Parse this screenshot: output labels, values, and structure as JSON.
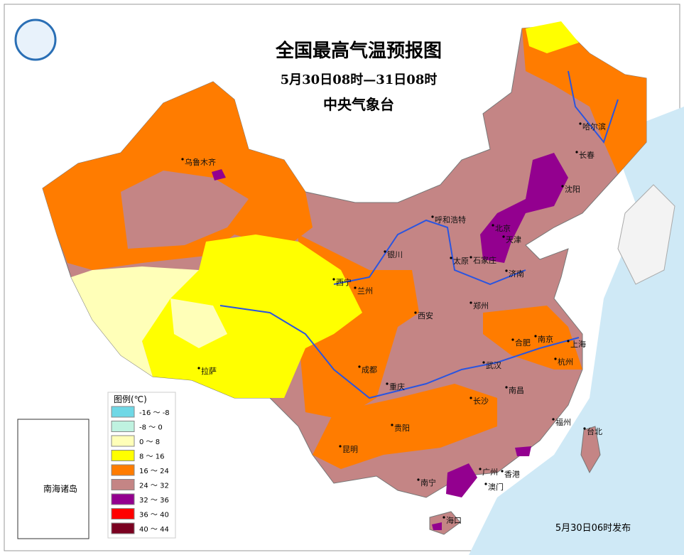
{
  "header": {
    "title": "全国最高气温预报图",
    "subtitle": "5月30日08时—31日08时",
    "issuer": "中央气象台"
  },
  "legend": {
    "title": "图例(℃)",
    "items": [
      {
        "label": "-16 ～ -8",
        "color": "#6fd8e6"
      },
      {
        "label": "-8 ～ 0",
        "color": "#bff2e0"
      },
      {
        "label": "0 ～ 8",
        "color": "#ffffb8"
      },
      {
        "label": "8 ～ 16",
        "color": "#ffff00"
      },
      {
        "label": "16 ～ 24",
        "color": "#ff7c00"
      },
      {
        "label": "24 ～ 32",
        "color": "#c48585"
      },
      {
        "label": "32 ～ 36",
        "color": "#93008f"
      },
      {
        "label": "36 ～ 40",
        "color": "#ff0000"
      },
      {
        "label": "40 ～ 44",
        "color": "#7a0020"
      }
    ]
  },
  "cities": [
    "乌鲁木齐",
    "哈尔滨",
    "长春",
    "沈阳",
    "呼和浩特",
    "北京",
    "天津",
    "石家庄",
    "太原",
    "济南",
    "银川",
    "西宁",
    "兰州",
    "郑州",
    "西安",
    "合肥",
    "南京",
    "上海",
    "杭州",
    "成都",
    "武汉",
    "重庆",
    "拉萨",
    "长沙",
    "南昌",
    "贵阳",
    "福州",
    "台北",
    "昆明",
    "广州",
    "香港",
    "澳门",
    "南宁",
    "海口"
  ],
  "inset": {
    "label": "南海诸岛"
  },
  "footer": {
    "issued": "5月30日06时发布"
  }
}
